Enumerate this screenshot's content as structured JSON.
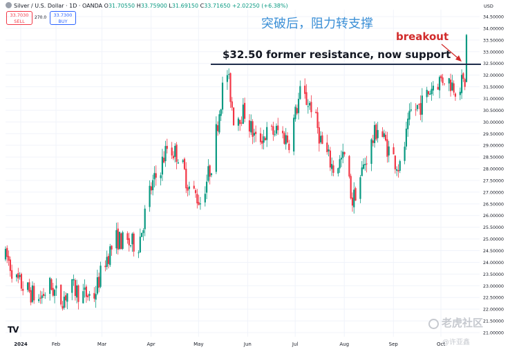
{
  "header": {
    "symbol_line": "Silver / U.S. Dollar · 1D · OANDA",
    "open_label": "O",
    "open": "31.70550",
    "high_label": "H",
    "high": "33.75900",
    "low_label": "L",
    "low": "31.69150",
    "close_label": "C",
    "close": "33.71650",
    "change": "+2.02250 (+6.38%)"
  },
  "quote": {
    "sell_price": "33.7030",
    "sell_label": "SELL",
    "spread": "270.0",
    "buy_price": "33.7300",
    "buy_label": "BUY"
  },
  "currency": "USD",
  "logo_text": "TV",
  "watermark": {
    "brand": "老虎社区",
    "author": "@许亚鑫"
  },
  "annotations": {
    "chinese_title": "突破后，阻力转支撑",
    "breakout": "breakout",
    "resistance": "$32.50 former resistance, now support"
  },
  "colors": {
    "up": "#089981",
    "down": "#f23645",
    "resistance_line": "#1f2d4a",
    "breakout_text": "#d12b2b",
    "chinese_text": "#3b8fd6",
    "grid": "#f0f3fa"
  },
  "chart_data": {
    "type": "candlestick",
    "title": "",
    "x_tick_labels": [
      "2024",
      "Feb",
      "Mar",
      "Apr",
      "May",
      "Jun",
      "Jul",
      "Aug",
      "Sep",
      "Oct"
    ],
    "y_tick_labels": [
      "21.00000",
      "21.50000",
      "22.00000",
      "22.50000",
      "23.00000",
      "23.50000",
      "24.00000",
      "24.50000",
      "25.00000",
      "25.50000",
      "26.00000",
      "26.50000",
      "27.00000",
      "27.50000",
      "28.00000",
      "28.50000",
      "29.00000",
      "29.50000",
      "30.00000",
      "30.50000",
      "31.00000",
      "31.50000",
      "32.00000",
      "32.50000",
      "33.00000",
      "33.50000",
      "34.00000",
      "34.50000"
    ],
    "ylim": [
      20.75,
      34.85
    ],
    "y_axis_position": "right",
    "x_axis": "daily, 2024-01-01 to 2024-10-18",
    "resistance_level": 32.5,
    "series_daily_close_approx": [
      {
        "date": "2024-01-02",
        "close": 24.2
      },
      {
        "date": "2024-01-08",
        "close": 23.2
      },
      {
        "date": "2024-01-15",
        "close": 22.8
      },
      {
        "date": "2024-01-22",
        "close": 22.4
      },
      {
        "date": "2024-01-29",
        "close": 23.0
      },
      {
        "date": "2024-02-05",
        "close": 22.4
      },
      {
        "date": "2024-02-12",
        "close": 22.9
      },
      {
        "date": "2024-02-19",
        "close": 22.6
      },
      {
        "date": "2024-02-26",
        "close": 22.6
      },
      {
        "date": "2024-03-04",
        "close": 24.1
      },
      {
        "date": "2024-03-11",
        "close": 25.0
      },
      {
        "date": "2024-03-18",
        "close": 24.8
      },
      {
        "date": "2024-03-25",
        "close": 24.8
      },
      {
        "date": "2024-04-01",
        "close": 27.0
      },
      {
        "date": "2024-04-08",
        "close": 28.1
      },
      {
        "date": "2024-04-12",
        "close": 28.9
      },
      {
        "date": "2024-04-19",
        "close": 28.6
      },
      {
        "date": "2024-04-26",
        "close": 27.2
      },
      {
        "date": "2024-05-03",
        "close": 26.6
      },
      {
        "date": "2024-05-10",
        "close": 28.2
      },
      {
        "date": "2024-05-17",
        "close": 31.4
      },
      {
        "date": "2024-05-20",
        "close": 32.1
      },
      {
        "date": "2024-05-24",
        "close": 30.2
      },
      {
        "date": "2024-05-31",
        "close": 30.4
      },
      {
        "date": "2024-06-07",
        "close": 29.2
      },
      {
        "date": "2024-06-14",
        "close": 29.5
      },
      {
        "date": "2024-06-21",
        "close": 29.6
      },
      {
        "date": "2024-06-28",
        "close": 29.2
      },
      {
        "date": "2024-07-05",
        "close": 31.2
      },
      {
        "date": "2024-07-12",
        "close": 30.7
      },
      {
        "date": "2024-07-19",
        "close": 29.0
      },
      {
        "date": "2024-07-26",
        "close": 28.0
      },
      {
        "date": "2024-08-02",
        "close": 28.5
      },
      {
        "date": "2024-08-07",
        "close": 26.6
      },
      {
        "date": "2024-08-16",
        "close": 28.5
      },
      {
        "date": "2024-08-23",
        "close": 29.8
      },
      {
        "date": "2024-08-30",
        "close": 28.8
      },
      {
        "date": "2024-09-06",
        "close": 28.0
      },
      {
        "date": "2024-09-13",
        "close": 30.4
      },
      {
        "date": "2024-09-20",
        "close": 30.8
      },
      {
        "date": "2024-09-27",
        "close": 31.6
      },
      {
        "date": "2024-10-04",
        "close": 31.9
      },
      {
        "date": "2024-10-11",
        "close": 31.5
      },
      {
        "date": "2024-10-17",
        "close": 31.7
      },
      {
        "date": "2024-10-18",
        "close": 33.72
      }
    ],
    "last_candle": {
      "date": "2024-10-18",
      "open": 31.7055,
      "high": 33.759,
      "low": 31.6915,
      "close": 33.7165
    }
  }
}
